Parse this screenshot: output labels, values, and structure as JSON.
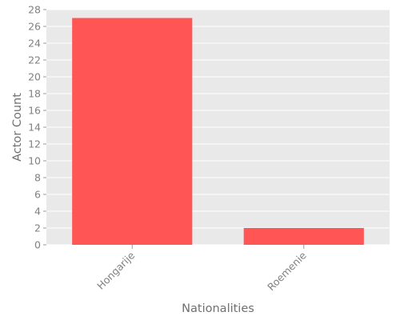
{
  "chart_data": {
    "type": "bar",
    "title": "",
    "xlabel": "Nationalities",
    "ylabel": "Actor Count",
    "categories": [
      "Hongarije",
      "Roemenie"
    ],
    "values": [
      27,
      2
    ],
    "ylim": [
      0,
      28
    ],
    "yticks": [
      0,
      2,
      4,
      6,
      8,
      10,
      12,
      14,
      16,
      18,
      20,
      22,
      24,
      26,
      28
    ],
    "grid": true,
    "legend": "none",
    "colors": {
      "bar": "#ff5555",
      "plot_background": "#e9e9e9",
      "grid": "#ffffff",
      "text": "#808080"
    }
  }
}
